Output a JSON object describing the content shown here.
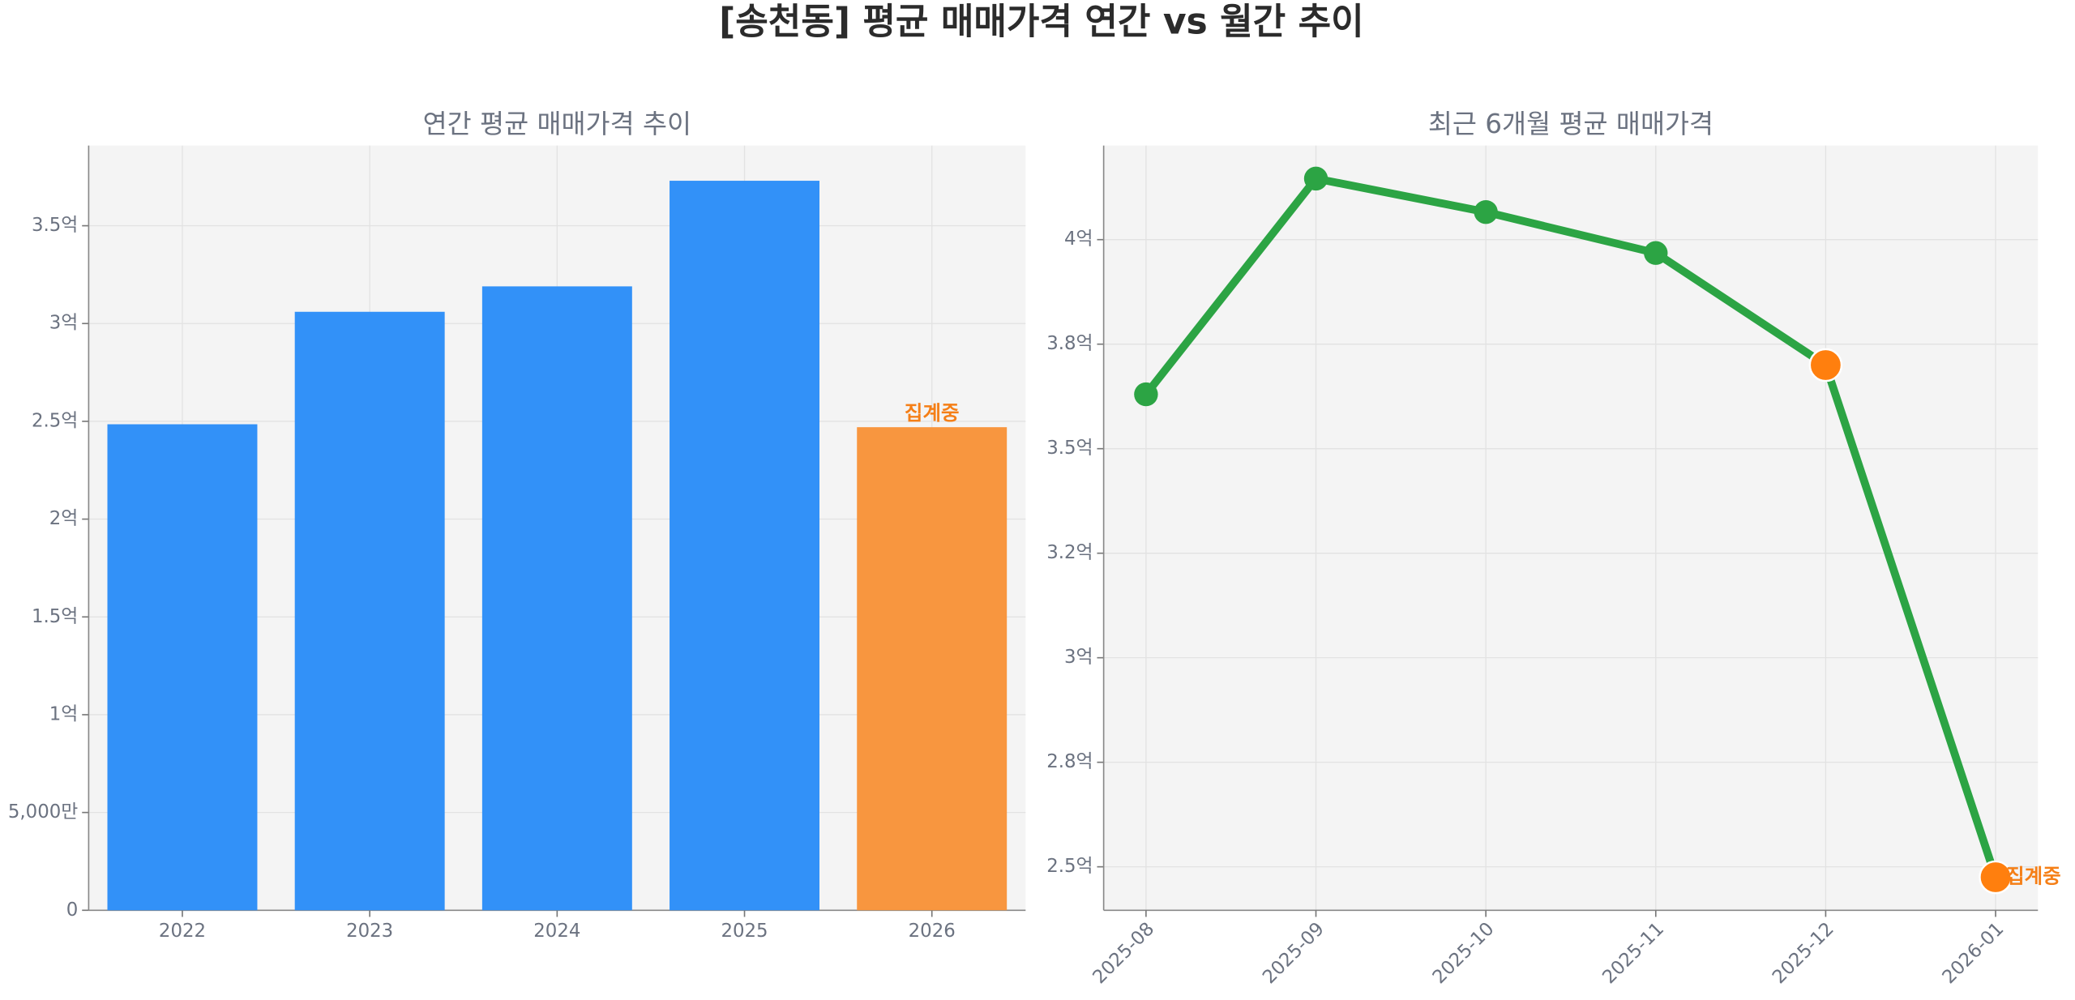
{
  "title": "[송천동] 평균 매매가격 연간 vs 월간 추이",
  "chart_data": [
    {
      "type": "bar",
      "title": "연간 평균 매매가격 추이",
      "categories": [
        "2022",
        "2023",
        "2024",
        "2025",
        "2026"
      ],
      "values": [
        2.485,
        3.06,
        3.19,
        3.73,
        2.47
      ],
      "colors": [
        "#3291f8",
        "#3291f8",
        "#3291f8",
        "#3291f8",
        "#f8963f"
      ],
      "annotation": "집계중",
      "annotation_color": "#f57f17",
      "ylim": [
        0,
        3.91
      ],
      "yticks": [
        0,
        {
          "value": 0.5,
          "label": "5,000만"
        },
        {
          "value": 1,
          "label": "1억"
        },
        {
          "value": 1.5,
          "label": "1.5억"
        },
        {
          "value": 2,
          "label": "2억"
        },
        {
          "value": 2.5,
          "label": "2.5억"
        },
        {
          "value": 3,
          "label": "3억"
        },
        {
          "value": 3.5,
          "label": "3.5억"
        }
      ],
      "grid": true
    },
    {
      "type": "line",
      "title": "최근 6개월 평균 매매가격",
      "categories": [
        "2025-08",
        "2025-09",
        "2025-10",
        "2025-11",
        "2025-12",
        "2026-01"
      ],
      "series": [
        {
          "color": "#2ca444",
          "values": [
            3.63,
            4.146,
            4.066,
            3.968,
            3.7,
            2.475
          ],
          "point_colors": [
            "#2ca444",
            "#2ca444",
            "#2ca444",
            "#2ca444",
            "#ff7f0e",
            "#ff7f0e"
          ]
        }
      ],
      "annotation": "집계중",
      "annotation_color": "#f57f17",
      "ylim": [
        2.396,
        4.225
      ],
      "yticks": [
        {
          "value": 2.5,
          "label": "2.5억"
        },
        {
          "value": 2.75,
          "label": "2.8억"
        },
        {
          "value": 3,
          "label": "3억"
        },
        {
          "value": 3.25,
          "label": "3.2억"
        },
        {
          "value": 3.5,
          "label": "3.5억"
        },
        {
          "value": 3.75,
          "label": "3.8억"
        },
        {
          "value": 4,
          "label": "4억"
        }
      ],
      "grid": true
    }
  ]
}
